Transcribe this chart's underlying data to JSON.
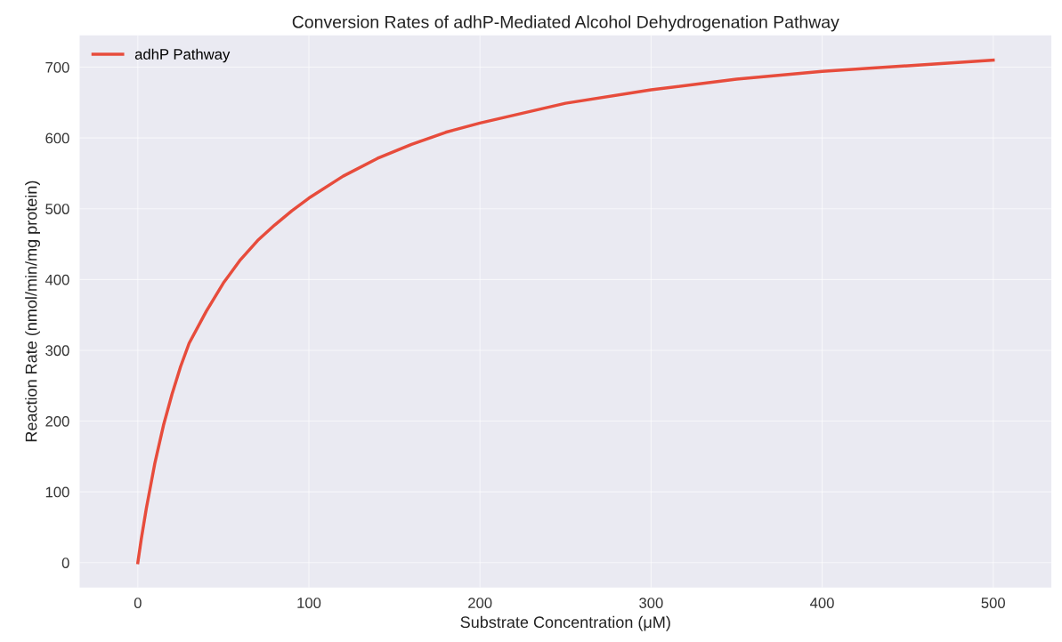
{
  "chart_data": {
    "type": "line",
    "title": "Conversion Rates of adhP-Mediated Alcohol Dehydrogenation Pathway",
    "xlabel": "Substrate Concentration (μM)",
    "ylabel": "Reaction Rate (nmol/min/mg protein)",
    "x": [
      0,
      2,
      5,
      10,
      15,
      20,
      25,
      30,
      40,
      50,
      60,
      70,
      80,
      90,
      100,
      120,
      140,
      160,
      180,
      200,
      250,
      300,
      350,
      400,
      450,
      500
    ],
    "series": [
      {
        "name": "adhP Pathway",
        "color": "#e74c3c",
        "values": [
          0,
          33,
          77,
          141,
          194,
          238,
          277,
          310,
          355,
          395,
          428,
          455,
          477,
          497,
          515,
          546,
          571,
          591,
          608,
          621,
          649,
          668,
          683,
          694,
          702,
          710
        ]
      }
    ],
    "xlim": [
      -34,
      534
    ],
    "ylim": [
      -35,
      745
    ],
    "xticks": [
      0,
      100,
      200,
      300,
      400,
      500
    ],
    "yticks": [
      0,
      100,
      200,
      300,
      400,
      500,
      600,
      700
    ],
    "grid": true,
    "legend": "top left",
    "line_style": "solid",
    "marker": "none"
  }
}
